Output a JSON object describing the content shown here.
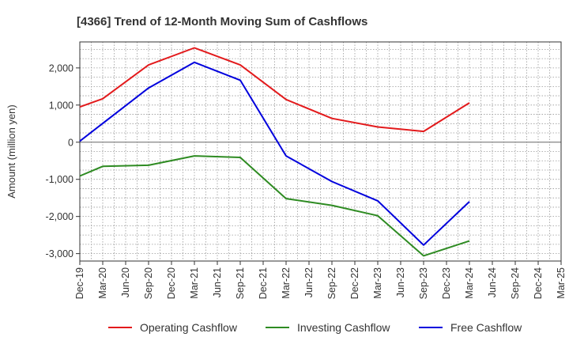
{
  "chart_data": {
    "type": "line",
    "title": "[4366]  Trend of 12-Month Moving Sum of Cashflows",
    "ylabel": "Amount (million yen)",
    "xlabel": "",
    "ylim": [
      -3200,
      2700
    ],
    "yticks": [
      -3000,
      -2000,
      -1000,
      0,
      1000,
      2000
    ],
    "ytick_labels": [
      "-3,000",
      "-2,000",
      "-1,000",
      "0",
      "1,000",
      "2,000"
    ],
    "categories": [
      "Dec-19",
      "Mar-20",
      "Jun-20",
      "Sep-20",
      "Dec-20",
      "Mar-21",
      "Jun-21",
      "Sep-21",
      "Dec-21",
      "Mar-22",
      "Jun-22",
      "Sep-22",
      "Dec-22",
      "Mar-23",
      "Jun-23",
      "Sep-23",
      "Dec-23",
      "Mar-24",
      "Jun-24",
      "Sep-24",
      "Dec-24",
      "Mar-25"
    ],
    "grid": true,
    "legend_position": "bottom",
    "series": [
      {
        "name": "Operating Cashflow",
        "color": "#e31a1c",
        "values": [
          950,
          1170,
          null,
          2080,
          null,
          2540,
          null,
          2080,
          null,
          1150,
          null,
          640,
          null,
          410,
          null,
          290,
          null,
          1060,
          null,
          null,
          null,
          null
        ]
      },
      {
        "name": "Investing Cashflow",
        "color": "#2e8b22",
        "values": [
          -910,
          -650,
          null,
          -620,
          null,
          -370,
          null,
          -410,
          null,
          -1520,
          null,
          -1700,
          null,
          -1980,
          null,
          -3060,
          null,
          -2660,
          null,
          null,
          null,
          null
        ]
      },
      {
        "name": "Free Cashflow",
        "color": "#0000dd",
        "values": [
          30,
          null,
          null,
          1460,
          null,
          2150,
          null,
          1670,
          null,
          -370,
          null,
          -1060,
          null,
          -1580,
          null,
          -2770,
          null,
          -1600,
          null,
          null,
          null,
          null
        ]
      }
    ]
  }
}
